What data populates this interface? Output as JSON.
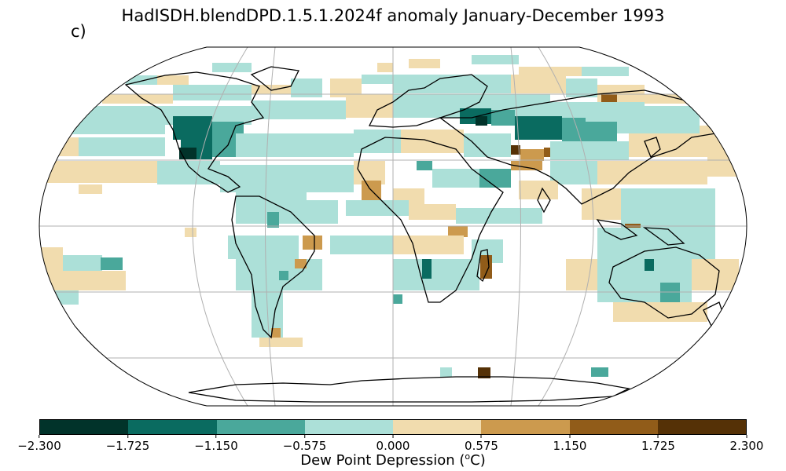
{
  "title": "HadISDH.blendDPD.1.5.1.2024f anomaly January-December 1993",
  "panel_label": "c)",
  "colorbar": {
    "label_prefix": "Dew Point Depression (",
    "label_unit_sup": "o",
    "label_suffix": "C)",
    "colors": [
      "#01332a",
      "#0a6b60",
      "#4aa89b",
      "#ace0d8",
      "#f1dcae",
      "#cc9a4e",
      "#915c19",
      "#553106"
    ],
    "ticks": [
      "−2.300",
      "−1.725",
      "−1.150",
      "−0.575",
      "0.000",
      "0.575",
      "1.150",
      "1.725",
      "2.300"
    ]
  },
  "map": {
    "projection": "Robinson",
    "gridlines": true,
    "coastlines": true
  }
}
